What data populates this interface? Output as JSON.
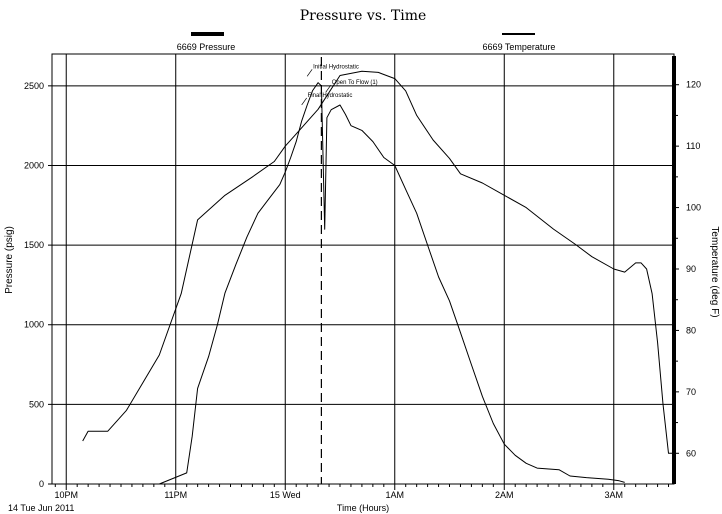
{
  "chart_data": {
    "type": "line",
    "title": "Pressure vs. Time",
    "xlabel": "Time (Hours)",
    "ylabel": "Pressure (psig)",
    "y2label": "Temperature (deg F)",
    "date_label": "14 Tue Jun 2011",
    "x_tick_labels": [
      "10PM",
      "11PM",
      "15 Wed",
      "1AM",
      "2AM",
      "3AM"
    ],
    "x_ticks_hours": [
      0,
      1,
      2,
      3,
      4,
      5
    ],
    "xlim_hours": [
      -0.13,
      5.55
    ],
    "ylim": [
      0,
      2700
    ],
    "y_ticks": [
      0,
      500,
      1000,
      1500,
      2000,
      2500
    ],
    "y2lim": [
      55,
      125
    ],
    "y2_ticks": [
      60,
      70,
      80,
      90,
      100,
      110,
      120
    ],
    "grid": true,
    "legend": [
      {
        "name": "6669 Pressure",
        "color": "#000000"
      },
      {
        "name": "6669 Temperature",
        "color": "#000000"
      }
    ],
    "annotations": [
      {
        "text": "Initial Hydrostatic",
        "hour": 2.2,
        "value": 2560
      },
      {
        "text": "Open To Flow (1)",
        "hour": 2.37,
        "value": 2460
      },
      {
        "text": "Final Hydrostatic",
        "hour": 2.15,
        "value": 2380
      }
    ],
    "event_line_hour": 2.33,
    "series": [
      {
        "name": "6669 Pressure",
        "axis": "left",
        "points": [
          [
            0.85,
            0
          ],
          [
            1.1,
            70
          ],
          [
            1.15,
            300
          ],
          [
            1.2,
            600
          ],
          [
            1.3,
            800
          ],
          [
            1.38,
            1000
          ],
          [
            1.45,
            1200
          ],
          [
            1.55,
            1380
          ],
          [
            1.65,
            1550
          ],
          [
            1.75,
            1700
          ],
          [
            1.85,
            1790
          ],
          [
            1.95,
            1880
          ],
          [
            2.0,
            1960
          ],
          [
            2.05,
            2050
          ],
          [
            2.1,
            2150
          ],
          [
            2.15,
            2280
          ],
          [
            2.2,
            2380
          ],
          [
            2.25,
            2470
          ],
          [
            2.3,
            2520
          ],
          [
            2.33,
            2500
          ],
          [
            2.36,
            1600
          ],
          [
            2.38,
            2300
          ],
          [
            2.42,
            2350
          ],
          [
            2.5,
            2380
          ],
          [
            2.55,
            2320
          ],
          [
            2.6,
            2250
          ],
          [
            2.7,
            2220
          ],
          [
            2.8,
            2150
          ],
          [
            2.9,
            2050
          ],
          [
            3.0,
            2000
          ],
          [
            3.1,
            1850
          ],
          [
            3.2,
            1700
          ],
          [
            3.3,
            1500
          ],
          [
            3.4,
            1300
          ],
          [
            3.5,
            1150
          ],
          [
            3.6,
            950
          ],
          [
            3.7,
            750
          ],
          [
            3.8,
            550
          ],
          [
            3.9,
            380
          ],
          [
            4.0,
            250
          ],
          [
            4.1,
            180
          ],
          [
            4.2,
            130
          ],
          [
            4.3,
            100
          ],
          [
            4.5,
            90
          ],
          [
            4.6,
            50
          ],
          [
            4.75,
            40
          ],
          [
            4.95,
            30
          ],
          [
            5.05,
            20
          ],
          [
            5.1,
            10
          ]
        ]
      },
      {
        "name": "6669 Temperature",
        "axis": "right",
        "points": [
          [
            0.15,
            62
          ],
          [
            0.2,
            63.6
          ],
          [
            0.38,
            63.6
          ],
          [
            0.55,
            67
          ],
          [
            0.85,
            76
          ],
          [
            1.05,
            86
          ],
          [
            1.2,
            98
          ],
          [
            1.45,
            102
          ],
          [
            1.7,
            105
          ],
          [
            1.9,
            107.5
          ],
          [
            2.0,
            110
          ],
          [
            2.1,
            112
          ],
          [
            2.2,
            114
          ],
          [
            2.3,
            116
          ],
          [
            2.5,
            121.5
          ],
          [
            2.7,
            122.2
          ],
          [
            2.85,
            122
          ],
          [
            3.0,
            121
          ],
          [
            3.1,
            119
          ],
          [
            3.2,
            115
          ],
          [
            3.35,
            111
          ],
          [
            3.5,
            108
          ],
          [
            3.6,
            105.5
          ],
          [
            3.8,
            104
          ],
          [
            4.0,
            102
          ],
          [
            4.2,
            100
          ],
          [
            4.45,
            96.5
          ],
          [
            4.65,
            94
          ],
          [
            4.8,
            92
          ],
          [
            5.0,
            90
          ],
          [
            5.1,
            89.5
          ],
          [
            5.2,
            91
          ],
          [
            5.25,
            91
          ],
          [
            5.3,
            90
          ],
          [
            5.35,
            86
          ],
          [
            5.4,
            78
          ],
          [
            5.45,
            68
          ],
          [
            5.5,
            60
          ],
          [
            5.55,
            60
          ]
        ]
      }
    ]
  }
}
